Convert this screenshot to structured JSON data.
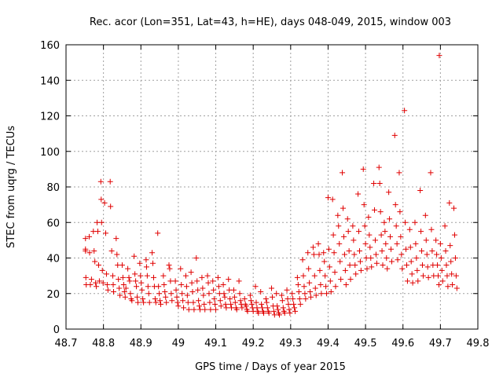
{
  "chart_data": {
    "type": "scatter",
    "title": "Rec. acor (Lon=351, Lat=43, h=HE), days 048-049, 2015, window 003",
    "xlabel": "GPS time / Days of year 2015",
    "ylabel": "STEC from uqrg / TECUs",
    "xlim": [
      48.7,
      49.8
    ],
    "ylim": [
      0,
      160
    ],
    "xticks": [
      48.7,
      48.8,
      48.9,
      49.0,
      49.1,
      49.2,
      49.3,
      49.4,
      49.5,
      49.6,
      49.7,
      49.8
    ],
    "xtick_labels": [
      "48.7",
      "48.8",
      "48.9",
      "49",
      "49.1",
      "49.2",
      "49.3",
      "49.4",
      "49.5",
      "49.6",
      "49.7",
      "49.8"
    ],
    "yticks": [
      0,
      20,
      40,
      60,
      80,
      100,
      120,
      140,
      160
    ],
    "ytick_labels": [
      "0",
      "20",
      "40",
      "60",
      "80",
      "100",
      "120",
      "140",
      "160"
    ],
    "grid": true,
    "marker": "+",
    "series_color": "#e00000",
    "points": [
      [
        48.752,
        51
      ],
      [
        48.752,
        45
      ],
      [
        48.752,
        44
      ],
      [
        48.753,
        29
      ],
      [
        48.754,
        25
      ],
      [
        48.762,
        52
      ],
      [
        48.763,
        43
      ],
      [
        48.765,
        25
      ],
      [
        48.768,
        28
      ],
      [
        48.773,
        55
      ],
      [
        48.775,
        44
      ],
      [
        48.777,
        38
      ],
      [
        48.779,
        26
      ],
      [
        48.781,
        24
      ],
      [
        48.783,
        60
      ],
      [
        48.785,
        55
      ],
      [
        48.787,
        36
      ],
      [
        48.789,
        27
      ],
      [
        48.793,
        83
      ],
      [
        48.794,
        73
      ],
      [
        48.795,
        60
      ],
      [
        48.797,
        33
      ],
      [
        48.799,
        26
      ],
      [
        48.803,
        71
      ],
      [
        48.806,
        54
      ],
      [
        48.808,
        31
      ],
      [
        48.81,
        25
      ],
      [
        48.812,
        22
      ],
      [
        48.818,
        83
      ],
      [
        48.819,
        69
      ],
      [
        48.822,
        44
      ],
      [
        48.825,
        30
      ],
      [
        48.826,
        25
      ],
      [
        48.827,
        21
      ],
      [
        48.834,
        51
      ],
      [
        48.836,
        42
      ],
      [
        48.838,
        36
      ],
      [
        48.84,
        28
      ],
      [
        48.842,
        23
      ],
      [
        48.844,
        19
      ],
      [
        48.85,
        36
      ],
      [
        48.852,
        29
      ],
      [
        48.854,
        25
      ],
      [
        48.856,
        21
      ],
      [
        48.858,
        18
      ],
      [
        48.86,
        23
      ],
      [
        48.865,
        34
      ],
      [
        48.868,
        29
      ],
      [
        48.87,
        27
      ],
      [
        48.872,
        20
      ],
      [
        48.874,
        17
      ],
      [
        48.876,
        16
      ],
      [
        48.882,
        41
      ],
      [
        48.884,
        31
      ],
      [
        48.886,
        27
      ],
      [
        48.888,
        24
      ],
      [
        48.89,
        18
      ],
      [
        48.892,
        15
      ],
      [
        48.897,
        37
      ],
      [
        48.899,
        30
      ],
      [
        48.901,
        26
      ],
      [
        48.903,
        22
      ],
      [
        48.905,
        17
      ],
      [
        48.907,
        15
      ],
      [
        48.914,
        39
      ],
      [
        48.915,
        35
      ],
      [
        48.917,
        30
      ],
      [
        48.919,
        24
      ],
      [
        48.921,
        20
      ],
      [
        48.923,
        15
      ],
      [
        48.93,
        43
      ],
      [
        48.932,
        37
      ],
      [
        48.934,
        29
      ],
      [
        48.936,
        24
      ],
      [
        48.938,
        17
      ],
      [
        48.94,
        15
      ],
      [
        48.945,
        54
      ],
      [
        48.947,
        24
      ],
      [
        48.949,
        20
      ],
      [
        48.951,
        16
      ],
      [
        48.953,
        14
      ],
      [
        48.96,
        30
      ],
      [
        48.962,
        25
      ],
      [
        48.964,
        21
      ],
      [
        48.966,
        18
      ],
      [
        48.968,
        15
      ],
      [
        48.975,
        36
      ],
      [
        48.977,
        34
      ],
      [
        48.979,
        27
      ],
      [
        48.981,
        20
      ],
      [
        48.983,
        16
      ],
      [
        48.992,
        27
      ],
      [
        48.994,
        22
      ],
      [
        48.996,
        18
      ],
      [
        48.998,
        15
      ],
      [
        49.0,
        13
      ],
      [
        49.006,
        34
      ],
      [
        49.008,
        25
      ],
      [
        49.01,
        20
      ],
      [
        49.012,
        16
      ],
      [
        49.014,
        12
      ],
      [
        49.02,
        30
      ],
      [
        49.022,
        24
      ],
      [
        49.024,
        19
      ],
      [
        49.026,
        15
      ],
      [
        49.028,
        11
      ],
      [
        49.034,
        32
      ],
      [
        49.036,
        26
      ],
      [
        49.038,
        21
      ],
      [
        49.04,
        15
      ],
      [
        49.042,
        11
      ],
      [
        49.048,
        40
      ],
      [
        49.05,
        27
      ],
      [
        49.052,
        22
      ],
      [
        49.054,
        16
      ],
      [
        49.056,
        13
      ],
      [
        49.058,
        11
      ],
      [
        49.063,
        29
      ],
      [
        49.065,
        23
      ],
      [
        49.067,
        19
      ],
      [
        49.069,
        14
      ],
      [
        49.071,
        11
      ],
      [
        49.078,
        30
      ],
      [
        49.08,
        26
      ],
      [
        49.082,
        20
      ],
      [
        49.084,
        15
      ],
      [
        49.086,
        11
      ],
      [
        49.092,
        27
      ],
      [
        49.094,
        22
      ],
      [
        49.096,
        17
      ],
      [
        49.098,
        14
      ],
      [
        49.1,
        11
      ],
      [
        49.106,
        29
      ],
      [
        49.108,
        24
      ],
      [
        49.11,
        20
      ],
      [
        49.112,
        16
      ],
      [
        49.114,
        13
      ],
      [
        49.12,
        25
      ],
      [
        49.122,
        20
      ],
      [
        49.124,
        18
      ],
      [
        49.126,
        14
      ],
      [
        49.128,
        12
      ],
      [
        49.134,
        28
      ],
      [
        49.136,
        22
      ],
      [
        49.138,
        17
      ],
      [
        49.14,
        14
      ],
      [
        49.142,
        12
      ],
      [
        49.148,
        22
      ],
      [
        49.15,
        18
      ],
      [
        49.152,
        15
      ],
      [
        49.154,
        12
      ],
      [
        49.156,
        11
      ],
      [
        49.162,
        27
      ],
      [
        49.164,
        20
      ],
      [
        49.166,
        16
      ],
      [
        49.168,
        14
      ],
      [
        49.17,
        12
      ],
      [
        49.177,
        17
      ],
      [
        49.179,
        14
      ],
      [
        49.181,
        13
      ],
      [
        49.183,
        11
      ],
      [
        49.185,
        10
      ],
      [
        49.192,
        19
      ],
      [
        49.194,
        16
      ],
      [
        49.196,
        14
      ],
      [
        49.198,
        12
      ],
      [
        49.2,
        10
      ],
      [
        49.206,
        24
      ],
      [
        49.208,
        15
      ],
      [
        49.21,
        12
      ],
      [
        49.212,
        10
      ],
      [
        49.214,
        9
      ],
      [
        49.22,
        21
      ],
      [
        49.222,
        14
      ],
      [
        49.224,
        12
      ],
      [
        49.226,
        10
      ],
      [
        49.228,
        9
      ],
      [
        49.234,
        17
      ],
      [
        49.236,
        15
      ],
      [
        49.238,
        12
      ],
      [
        49.24,
        10
      ],
      [
        49.242,
        9
      ],
      [
        49.249,
        23
      ],
      [
        49.251,
        18
      ],
      [
        49.253,
        13
      ],
      [
        49.255,
        10
      ],
      [
        49.257,
        8
      ],
      [
        49.262,
        20
      ],
      [
        49.264,
        13
      ],
      [
        49.266,
        11
      ],
      [
        49.268,
        9
      ],
      [
        49.27,
        8
      ],
      [
        49.276,
        19
      ],
      [
        49.278,
        16
      ],
      [
        49.28,
        12
      ],
      [
        49.282,
        10
      ],
      [
        49.284,
        9
      ],
      [
        49.29,
        22
      ],
      [
        49.292,
        17
      ],
      [
        49.294,
        14
      ],
      [
        49.296,
        11
      ],
      [
        49.298,
        9
      ],
      [
        49.304,
        20
      ],
      [
        49.306,
        17
      ],
      [
        49.308,
        14
      ],
      [
        49.31,
        12
      ],
      [
        49.312,
        10
      ],
      [
        49.318,
        29
      ],
      [
        49.32,
        25
      ],
      [
        49.322,
        21
      ],
      [
        49.324,
        17
      ],
      [
        49.326,
        14
      ],
      [
        49.332,
        39
      ],
      [
        49.334,
        30
      ],
      [
        49.336,
        24
      ],
      [
        49.338,
        20
      ],
      [
        49.34,
        17
      ],
      [
        49.346,
        43
      ],
      [
        49.348,
        34
      ],
      [
        49.35,
        26
      ],
      [
        49.352,
        21
      ],
      [
        49.354,
        18
      ],
      [
        49.36,
        46
      ],
      [
        49.362,
        42
      ],
      [
        49.364,
        30
      ],
      [
        49.366,
        23
      ],
      [
        49.368,
        19
      ],
      [
        49.374,
        48
      ],
      [
        49.376,
        42
      ],
      [
        49.378,
        33
      ],
      [
        49.38,
        25
      ],
      [
        49.382,
        20
      ],
      [
        49.388,
        43
      ],
      [
        49.39,
        38
      ],
      [
        49.392,
        30
      ],
      [
        49.394,
        24
      ],
      [
        49.396,
        20
      ],
      [
        49.4,
        74
      ],
      [
        49.402,
        45
      ],
      [
        49.404,
        35
      ],
      [
        49.406,
        27
      ],
      [
        49.408,
        21
      ],
      [
        49.412,
        73
      ],
      [
        49.414,
        53
      ],
      [
        49.416,
        43
      ],
      [
        49.418,
        32
      ],
      [
        49.42,
        24
      ],
      [
        49.426,
        64
      ],
      [
        49.428,
        58
      ],
      [
        49.43,
        48
      ],
      [
        49.432,
        38
      ],
      [
        49.434,
        28
      ],
      [
        49.438,
        88
      ],
      [
        49.44,
        68
      ],
      [
        49.442,
        52
      ],
      [
        49.444,
        42
      ],
      [
        49.446,
        33
      ],
      [
        49.448,
        25
      ],
      [
        49.452,
        62
      ],
      [
        49.454,
        55
      ],
      [
        49.456,
        44
      ],
      [
        49.458,
        36
      ],
      [
        49.46,
        28
      ],
      [
        49.466,
        58
      ],
      [
        49.468,
        50
      ],
      [
        49.47,
        42
      ],
      [
        49.472,
        36
      ],
      [
        49.474,
        31
      ],
      [
        49.48,
        76
      ],
      [
        49.482,
        55
      ],
      [
        49.484,
        44
      ],
      [
        49.486,
        38
      ],
      [
        49.488,
        33
      ],
      [
        49.494,
        90
      ],
      [
        49.496,
        70
      ],
      [
        49.498,
        58
      ],
      [
        49.5,
        48
      ],
      [
        49.502,
        40
      ],
      [
        49.504,
        34
      ],
      [
        49.508,
        63
      ],
      [
        49.51,
        53
      ],
      [
        49.512,
        46
      ],
      [
        49.514,
        40
      ],
      [
        49.516,
        35
      ],
      [
        49.522,
        82
      ],
      [
        49.524,
        67
      ],
      [
        49.526,
        50
      ],
      [
        49.528,
        42
      ],
      [
        49.53,
        37
      ],
      [
        49.536,
        91
      ],
      [
        49.538,
        82
      ],
      [
        49.54,
        66
      ],
      [
        49.542,
        53
      ],
      [
        49.544,
        44
      ],
      [
        49.546,
        36
      ],
      [
        49.55,
        60
      ],
      [
        49.552,
        55
      ],
      [
        49.554,
        48
      ],
      [
        49.556,
        40
      ],
      [
        49.558,
        34
      ],
      [
        49.562,
        77
      ],
      [
        49.564,
        62
      ],
      [
        49.566,
        52
      ],
      [
        49.568,
        45
      ],
      [
        49.57,
        38
      ],
      [
        49.578,
        109
      ],
      [
        49.58,
        70
      ],
      [
        49.582,
        58
      ],
      [
        49.584,
        48
      ],
      [
        49.586,
        39
      ],
      [
        49.59,
        88
      ],
      [
        49.592,
        66
      ],
      [
        49.594,
        52
      ],
      [
        49.596,
        42
      ],
      [
        49.598,
        34
      ],
      [
        49.604,
        123
      ],
      [
        49.606,
        60
      ],
      [
        49.608,
        45
      ],
      [
        49.61,
        36
      ],
      [
        49.612,
        27
      ],
      [
        49.618,
        56
      ],
      [
        49.62,
        46
      ],
      [
        49.622,
        38
      ],
      [
        49.624,
        31
      ],
      [
        49.626,
        26
      ],
      [
        49.632,
        60
      ],
      [
        49.634,
        48
      ],
      [
        49.636,
        40
      ],
      [
        49.638,
        33
      ],
      [
        49.64,
        27
      ],
      [
        49.646,
        78
      ],
      [
        49.648,
        55
      ],
      [
        49.65,
        44
      ],
      [
        49.652,
        36
      ],
      [
        49.654,
        30
      ],
      [
        49.66,
        64
      ],
      [
        49.662,
        50
      ],
      [
        49.664,
        42
      ],
      [
        49.666,
        35
      ],
      [
        49.668,
        29
      ],
      [
        49.674,
        88
      ],
      [
        49.676,
        56
      ],
      [
        49.678,
        44
      ],
      [
        49.68,
        36
      ],
      [
        49.682,
        30
      ],
      [
        49.688,
        50
      ],
      [
        49.69,
        42
      ],
      [
        49.692,
        36
      ],
      [
        49.694,
        30
      ],
      [
        49.696,
        25
      ],
      [
        49.697,
        154
      ],
      [
        49.7,
        48
      ],
      [
        49.702,
        40
      ],
      [
        49.704,
        33
      ],
      [
        49.706,
        27
      ],
      [
        49.712,
        58
      ],
      [
        49.714,
        44
      ],
      [
        49.716,
        36
      ],
      [
        49.718,
        30
      ],
      [
        49.72,
        24
      ],
      [
        49.724,
        71
      ],
      [
        49.726,
        47
      ],
      [
        49.728,
        38
      ],
      [
        49.73,
        31
      ],
      [
        49.732,
        25
      ],
      [
        49.736,
        68
      ],
      [
        49.738,
        53
      ],
      [
        49.74,
        40
      ],
      [
        49.742,
        30
      ],
      [
        49.744,
        23
      ]
    ]
  }
}
